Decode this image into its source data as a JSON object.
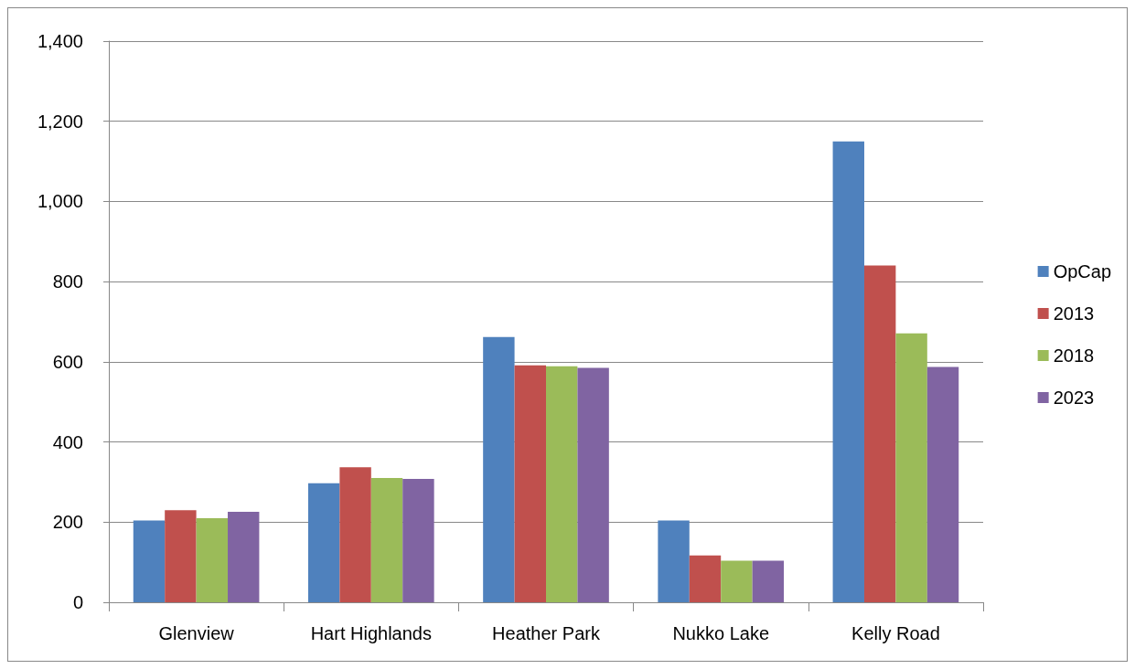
{
  "chart_data": {
    "type": "bar",
    "categories": [
      "Glenview",
      "Hart Highlands",
      "Heather Park",
      "Nukko Lake",
      "Kelly Road"
    ],
    "series": [
      {
        "name": "OpCap",
        "color": "#4f81bd",
        "values": [
          204,
          297,
          662,
          204,
          1150
        ]
      },
      {
        "name": "2013",
        "color": "#c0504d",
        "values": [
          230,
          337,
          591,
          117,
          840
        ]
      },
      {
        "name": "2018",
        "color": "#9bbb59",
        "values": [
          210,
          310,
          589,
          104,
          671
        ]
      },
      {
        "name": "2023",
        "color": "#8064a2",
        "values": [
          226,
          308,
          585,
          104,
          587
        ]
      }
    ],
    "ylim": [
      0,
      1400
    ],
    "yticks": [
      0,
      200,
      400,
      600,
      800,
      {
        "value": 1000,
        "label": "1,000"
      },
      {
        "value": 1200,
        "label": "1,200"
      },
      {
        "value": 1400,
        "label": "1,400"
      }
    ],
    "grid": "y",
    "legend": "right"
  }
}
